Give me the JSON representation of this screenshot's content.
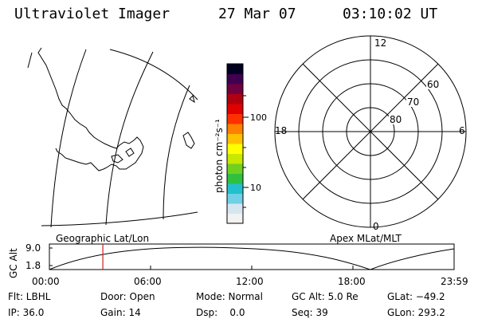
{
  "header": {
    "title": "Ultraviolet Imager",
    "date": "27 Mar 07",
    "time": "03:10:02 UT"
  },
  "colorbar": {
    "unit_label": "photon cm⁻²s⁻¹",
    "tick_100": "100",
    "tick_10": "10",
    "colors": [
      "#f2f2f2",
      "#d6e6f0",
      "#70d0e6",
      "#22c0cc",
      "#30c040",
      "#70d020",
      "#c8e800",
      "#ffff00",
      "#ffc000",
      "#ff8000",
      "#ff3000",
      "#e00000",
      "#b00010",
      "#700040",
      "#400050",
      "#000020"
    ]
  },
  "polar": {
    "label_12": "12",
    "label_18": "18",
    "label_6": "6",
    "label_0": "0",
    "lat_60": "60",
    "lat_70": "70",
    "lat_80": "80"
  },
  "map_labels": {
    "geographic": "Geographic Lat/Lon",
    "apex": "Apex MLat/MLT"
  },
  "altitude_plot": {
    "ylabel": "GC Alt",
    "ytick_high": "9.0",
    "ytick_low": "1.8",
    "xticks": [
      "00:00",
      "06:00",
      "12:00",
      "18:00",
      "23:59"
    ],
    "current_time_hours": 3.17
  },
  "status": {
    "filter": "Flt: LBHL",
    "ip": "IP: 36.0",
    "door": "Door: Open",
    "gain": "Gain: 14",
    "mode": "Mode: Normal",
    "dsp": "Dsp:    0.0",
    "gcalt": "GC Alt: 5.0 Re",
    "seq": "Seq: 39",
    "glat": "GLat: −49.2",
    "glon": "GLon: 293.2"
  }
}
